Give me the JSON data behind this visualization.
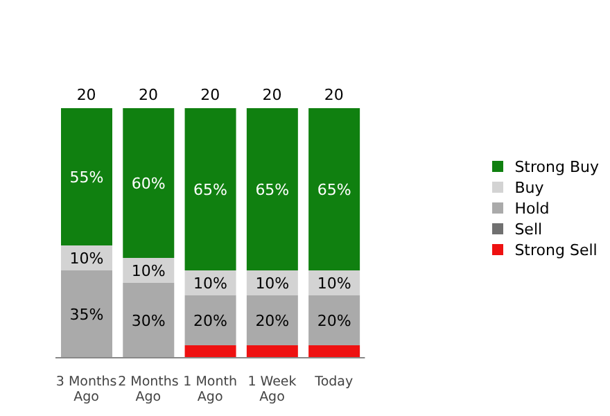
{
  "chart_data": {
    "type": "bar",
    "stacked": true,
    "legend": "right",
    "categories": [
      "3 Months Ago",
      "2 Months Ago",
      "1 Month Ago",
      "1 Week Ago",
      "Today"
    ],
    "series": [
      {
        "name": "Strong Sell",
        "color": "#ee1111",
        "values": [
          0,
          0,
          5,
          5,
          5
        ],
        "value_labels": [
          null,
          null,
          null,
          null,
          null
        ]
      },
      {
        "name": "Sell",
        "color": "#707070",
        "values": [
          0,
          0,
          0,
          0,
          0
        ],
        "value_labels": [
          null,
          null,
          null,
          null,
          null
        ]
      },
      {
        "name": "Hold",
        "color": "#aaaaaa",
        "values": [
          35,
          30,
          20,
          20,
          20
        ],
        "value_labels": [
          "35%",
          "30%",
          "20%",
          "20%",
          "20%"
        ]
      },
      {
        "name": "Buy",
        "color": "#d3d3d3",
        "values": [
          10,
          10,
          10,
          10,
          10
        ],
        "value_labels": [
          "10%",
          "10%",
          "10%",
          "10%",
          "10%"
        ]
      },
      {
        "name": "Strong Buy",
        "color": "#108010",
        "values": [
          55,
          60,
          65,
          65,
          65
        ],
        "value_labels": [
          "55%",
          "60%",
          "65%",
          "65%",
          "65%"
        ]
      }
    ],
    "annotations": [
      {
        "text": "20",
        "x": "3 Months Ago",
        "y": 100
      },
      {
        "text": "20",
        "x": "2 Months Ago",
        "y": 100
      },
      {
        "text": "20",
        "x": "1 Month Ago",
        "y": 100
      },
      {
        "text": "20",
        "x": "1 Week Ago",
        "y": 100
      },
      {
        "text": "20",
        "x": "Today",
        "y": 100
      }
    ]
  }
}
